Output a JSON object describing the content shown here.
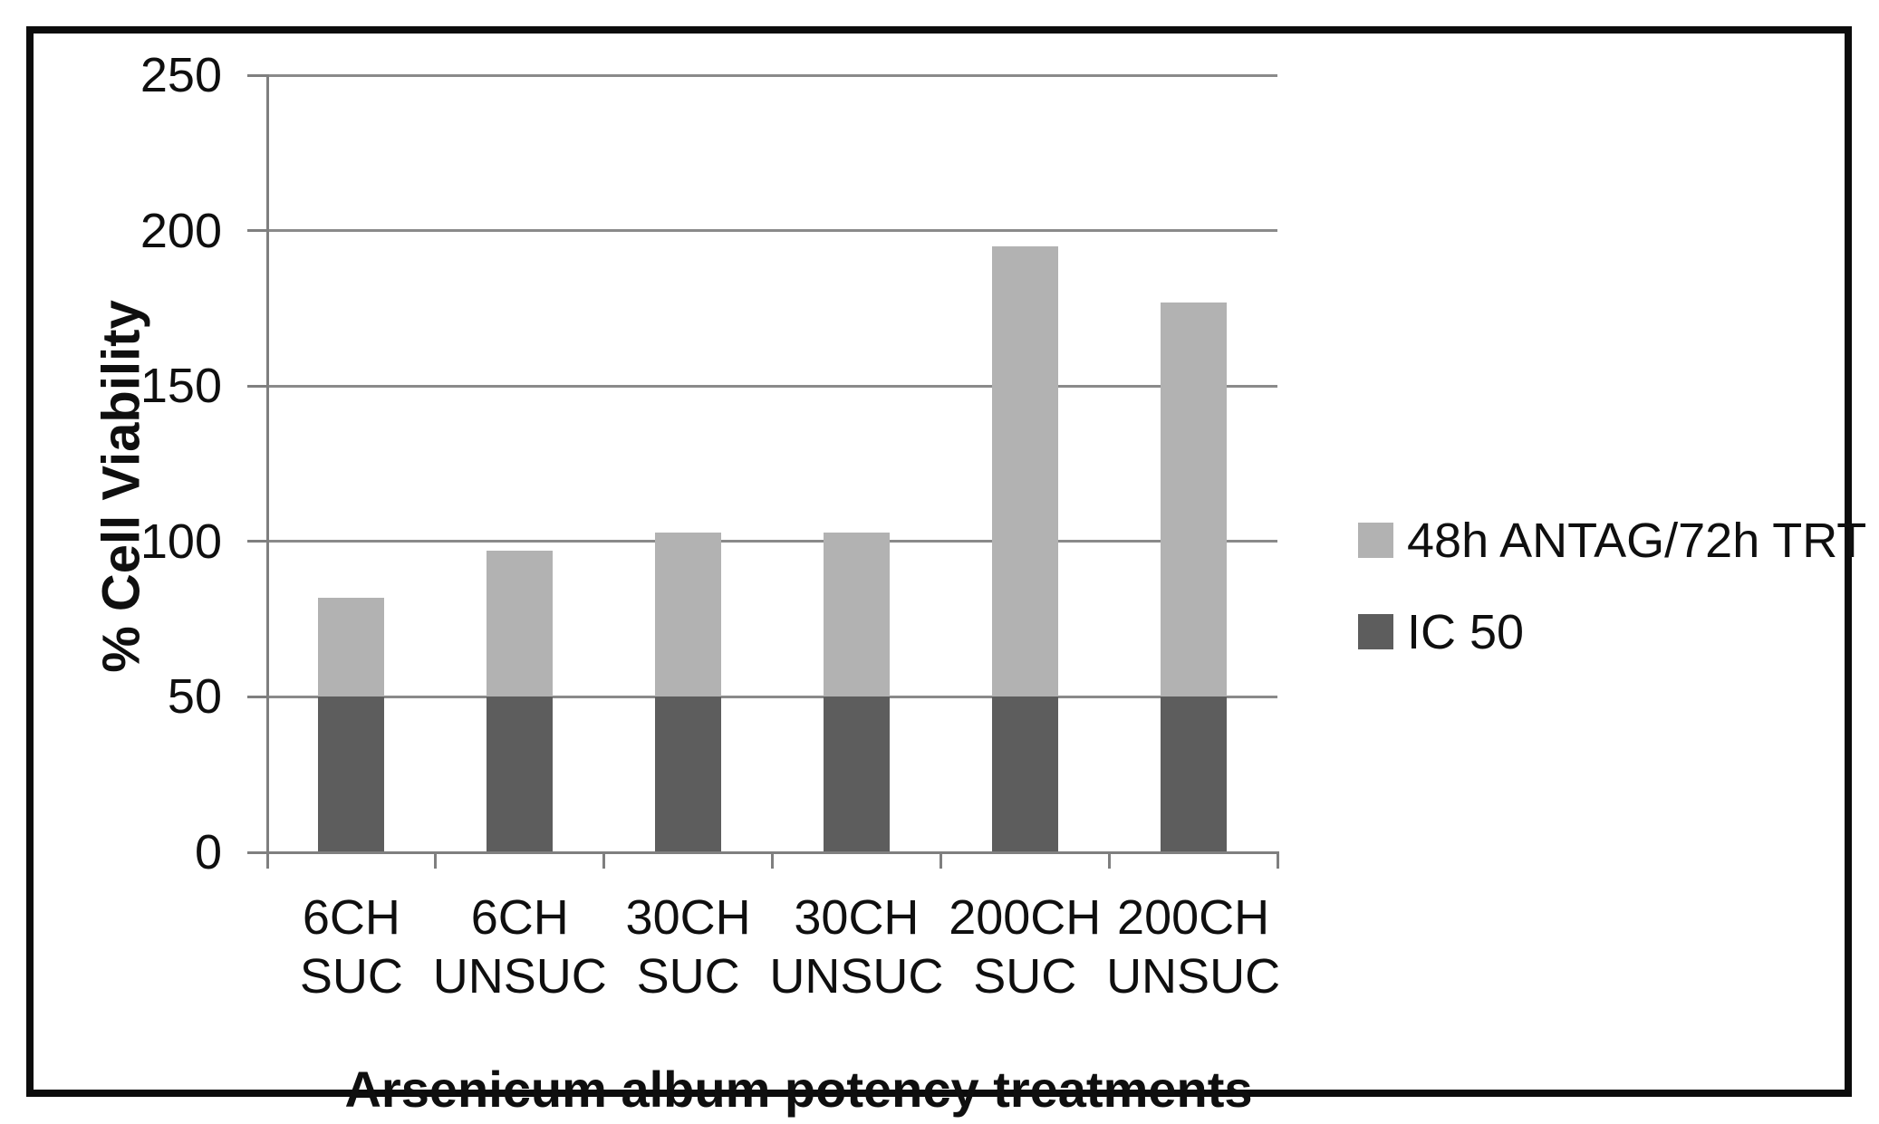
{
  "chart_data": {
    "type": "bar",
    "stacked": true,
    "title": "",
    "categories": [
      "6CH SUC",
      "6CH UNSUC",
      "30CH SUC",
      "30CH UNSUC",
      "200CH SUC",
      "200CH UNSUC"
    ],
    "categories_two_line": [
      [
        "6CH",
        "SUC"
      ],
      [
        "6CH",
        "UNSUC"
      ],
      [
        "30CH",
        "SUC"
      ],
      [
        "30CH",
        "UNSUC"
      ],
      [
        "200CH",
        "SUC"
      ],
      [
        "200CH",
        "UNSUC"
      ]
    ],
    "series": [
      {
        "name": "IC 50",
        "color": "#5d5d5d",
        "values": [
          50,
          50,
          50,
          50,
          50,
          50
        ]
      },
      {
        "name": "48h ANTAG/72h TRT",
        "color": "#b2b2b2",
        "values": [
          32,
          47,
          53,
          53,
          145,
          127
        ]
      }
    ],
    "stack_totals": [
      82,
      97,
      103,
      103,
      195,
      177
    ],
    "xlabel": "Arsenicum album potency treatments",
    "ylabel": "% Cell Viability",
    "ylim": [
      0,
      250
    ],
    "yticks": [
      0,
      50,
      100,
      150,
      200,
      250
    ],
    "grid": true,
    "legend_position": "right"
  },
  "legend": {
    "items": [
      {
        "label": "48h ANTAG/72h TRT",
        "color": "#b2b2b2"
      },
      {
        "label": "IC 50",
        "color": "#5d5d5d"
      }
    ]
  },
  "colors": {
    "grid": "#8a8a8a",
    "axis": "#7f7f7f",
    "frame": "#0c0c0c",
    "text": "#0f0f0f",
    "background": "#ffffff"
  }
}
